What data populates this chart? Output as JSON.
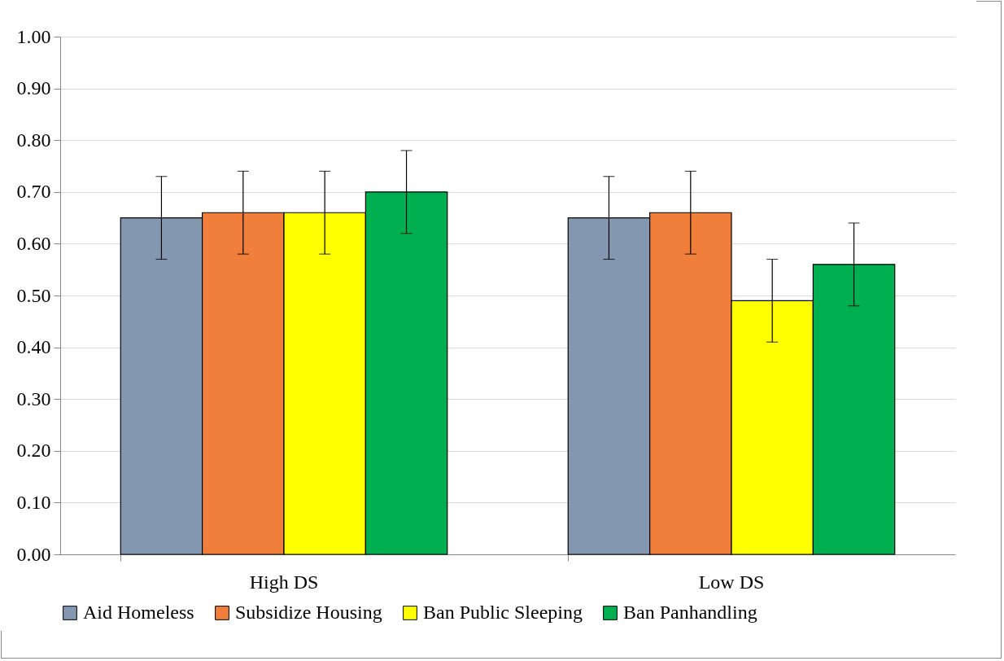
{
  "chart_data": {
    "type": "bar",
    "categories": [
      "High DS",
      "Low DS"
    ],
    "series": [
      {
        "name": "Aid Homeless",
        "color": "#8497b0",
        "values": [
          0.65,
          0.65
        ],
        "errors": [
          0.08,
          0.08
        ]
      },
      {
        "name": "Subsidize Housing",
        "color": "#f07f3c",
        "values": [
          0.66,
          0.66
        ],
        "errors": [
          0.08,
          0.08
        ]
      },
      {
        "name": "Ban Public Sleeping",
        "color": "#ffff00",
        "values": [
          0.66,
          0.49
        ],
        "errors": [
          0.08,
          0.08
        ]
      },
      {
        "name": "Ban Panhandling",
        "color": "#00b050",
        "values": [
          0.7,
          0.56
        ],
        "errors": [
          0.08,
          0.08
        ]
      }
    ],
    "ylim": [
      0,
      1
    ],
    "yticks": [
      {
        "value": 0,
        "label": "0.00"
      },
      {
        "value": 0.1,
        "label": "0.10"
      },
      {
        "value": 0.2,
        "label": "0.20"
      },
      {
        "value": 0.3,
        "label": "0.30"
      },
      {
        "value": 0.4,
        "label": "0.40"
      },
      {
        "value": 0.5,
        "label": "0.50"
      },
      {
        "value": 0.6,
        "label": "0.60"
      },
      {
        "value": 0.7,
        "label": "0.70"
      },
      {
        "value": 0.8,
        "label": "0.80"
      },
      {
        "value": 0.9,
        "label": "0.90"
      },
      {
        "value": 1,
        "label": "1.00"
      }
    ],
    "grid": "y",
    "legend": "bottom"
  }
}
